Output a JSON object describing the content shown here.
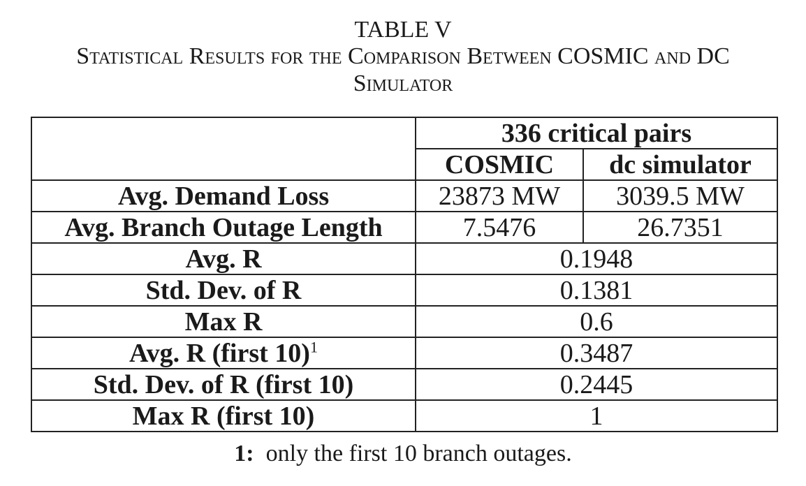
{
  "caption": {
    "label": "TABLE V",
    "title_line1": "Statistical Results for the Comparison Between COSMIC and DC",
    "title_line2": "Simulator"
  },
  "table": {
    "group_header": "336 critical pairs",
    "col_cosmic": "COSMIC",
    "col_dc": "dc simulator",
    "rows": [
      {
        "label": "Avg. Demand Loss",
        "cosmic": "23873 MW",
        "dc": "3039.5 MW"
      },
      {
        "label": "Avg. Branch Outage Length",
        "cosmic": "7.5476",
        "dc": "26.7351"
      },
      {
        "label": "Avg. R",
        "value": "0.1948"
      },
      {
        "label": "Std. Dev. of R",
        "value": "0.1381"
      },
      {
        "label": "Max R",
        "value": "0.6"
      },
      {
        "label": "Avg. R (first 10)",
        "sup": "1",
        "value": "0.3487"
      },
      {
        "label": "Std. Dev. of R (first 10)",
        "value": "0.2445"
      },
      {
        "label": "Max R (first 10)",
        "value": "1"
      }
    ]
  },
  "footnote": {
    "marker": "1:",
    "text": "only the first 10 branch outages."
  }
}
